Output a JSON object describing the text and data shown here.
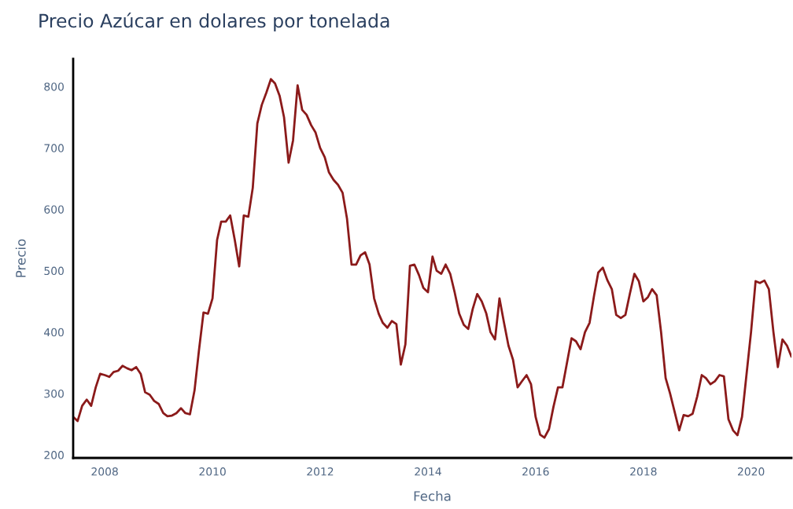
{
  "chart_data": {
    "type": "line",
    "title": "Precio Azúcar en dolares por tonelada",
    "xlabel": "Fecha",
    "ylabel": "Precio",
    "x": [
      "2007-06",
      "2007-07",
      "2007-08",
      "2007-09",
      "2007-10",
      "2007-11",
      "2007-12",
      "2008-01",
      "2008-02",
      "2008-03",
      "2008-04",
      "2008-05",
      "2008-06",
      "2008-07",
      "2008-08",
      "2008-09",
      "2008-10",
      "2008-11",
      "2008-12",
      "2009-01",
      "2009-02",
      "2009-03",
      "2009-04",
      "2009-05",
      "2009-06",
      "2009-07",
      "2009-08",
      "2009-09",
      "2009-10",
      "2009-11",
      "2009-12",
      "2010-01",
      "2010-02",
      "2010-03",
      "2010-04",
      "2010-05",
      "2010-06",
      "2010-07",
      "2010-08",
      "2010-09",
      "2010-10",
      "2010-11",
      "2010-12",
      "2011-01",
      "2011-02",
      "2011-03",
      "2011-04",
      "2011-05",
      "2011-06",
      "2011-07",
      "2011-08",
      "2011-09",
      "2011-10",
      "2011-11",
      "2011-12",
      "2012-01",
      "2012-02",
      "2012-03",
      "2012-04",
      "2012-05",
      "2012-06",
      "2012-07",
      "2012-08",
      "2012-09",
      "2012-10",
      "2012-11",
      "2012-12",
      "2013-01",
      "2013-02",
      "2013-03",
      "2013-04",
      "2013-05",
      "2013-06",
      "2013-07",
      "2013-08",
      "2013-09",
      "2013-10",
      "2013-11",
      "2013-12",
      "2014-01",
      "2014-02",
      "2014-03",
      "2014-04",
      "2014-05",
      "2014-06",
      "2014-07",
      "2014-08",
      "2014-09",
      "2014-10",
      "2014-11",
      "2014-12",
      "2015-01",
      "2015-02",
      "2015-03",
      "2015-04",
      "2015-05",
      "2015-06",
      "2015-07",
      "2015-08",
      "2015-09",
      "2015-10",
      "2015-11",
      "2015-12",
      "2016-01",
      "2016-02",
      "2016-03",
      "2016-04",
      "2016-05",
      "2016-06",
      "2016-07",
      "2016-08",
      "2016-09",
      "2016-10",
      "2016-11",
      "2016-12",
      "2017-01",
      "2017-02",
      "2017-03",
      "2017-04",
      "2017-05",
      "2017-06",
      "2017-07",
      "2017-08",
      "2017-09",
      "2017-10",
      "2017-11",
      "2017-12",
      "2018-01",
      "2018-02",
      "2018-03",
      "2018-04",
      "2018-05",
      "2018-06",
      "2018-07",
      "2018-08",
      "2018-09",
      "2018-10",
      "2018-11",
      "2018-12",
      "2019-01",
      "2019-02",
      "2019-03",
      "2019-04",
      "2019-05",
      "2019-06",
      "2019-07",
      "2019-08",
      "2019-09",
      "2019-10",
      "2019-11",
      "2019-12",
      "2020-01",
      "2020-02",
      "2020-03",
      "2020-04",
      "2020-05",
      "2020-06",
      "2020-07",
      "2020-08",
      "2020-09",
      "2020-10"
    ],
    "series": [
      {
        "color": "#8b1a1a",
        "values": [
          262,
          255,
          280,
          290,
          280,
          310,
          332,
          330,
          327,
          335,
          337,
          345,
          341,
          338,
          343,
          332,
          302,
          298,
          288,
          283,
          268,
          263,
          264,
          268,
          276,
          268,
          266,
          305,
          370,
          432,
          430,
          455,
          550,
          580,
          580,
          590,
          550,
          507,
          590,
          588,
          635,
          740,
          770,
          790,
          812,
          805,
          785,
          750,
          676,
          712,
          802,
          762,
          754,
          737,
          725,
          700,
          685,
          660,
          648,
          640,
          627,
          585,
          510,
          510,
          525,
          530,
          510,
          455,
          430,
          415,
          407,
          418,
          413,
          347,
          380,
          508,
          510,
          493,
          472,
          465,
          523,
          500,
          495,
          510,
          495,
          465,
          430,
          412,
          405,
          438,
          462,
          450,
          430,
          400,
          388,
          455,
          415,
          378,
          355,
          310,
          320,
          330,
          315,
          262,
          233,
          228,
          242,
          278,
          310,
          310,
          350,
          390,
          385,
          372,
          400,
          415,
          460,
          497,
          505,
          485,
          470,
          428,
          423,
          428,
          462,
          495,
          483,
          450,
          457,
          470,
          460,
          400,
          325,
          300,
          270,
          240,
          265,
          263,
          267,
          295,
          330,
          325,
          315,
          320,
          330,
          328,
          258,
          240,
          232,
          262,
          330,
          400,
          483,
          480,
          484,
          470,
          400,
          343,
          388,
          378,
          360
        ]
      }
    ],
    "xlim": [
      "2007-06",
      "2020-10"
    ],
    "xticks": [
      {
        "value": "2008",
        "label": "2008"
      },
      {
        "value": "2010",
        "label": "2010"
      },
      {
        "value": "2012",
        "label": "2012"
      },
      {
        "value": "2014",
        "label": "2014"
      },
      {
        "value": "2016",
        "label": "2016"
      },
      {
        "value": "2018",
        "label": "2018"
      },
      {
        "value": "2020",
        "label": "2020"
      }
    ],
    "ylim": [
      195,
      845
    ],
    "yticks": [
      200,
      300,
      400,
      500,
      600,
      700,
      800
    ],
    "grid": false
  }
}
